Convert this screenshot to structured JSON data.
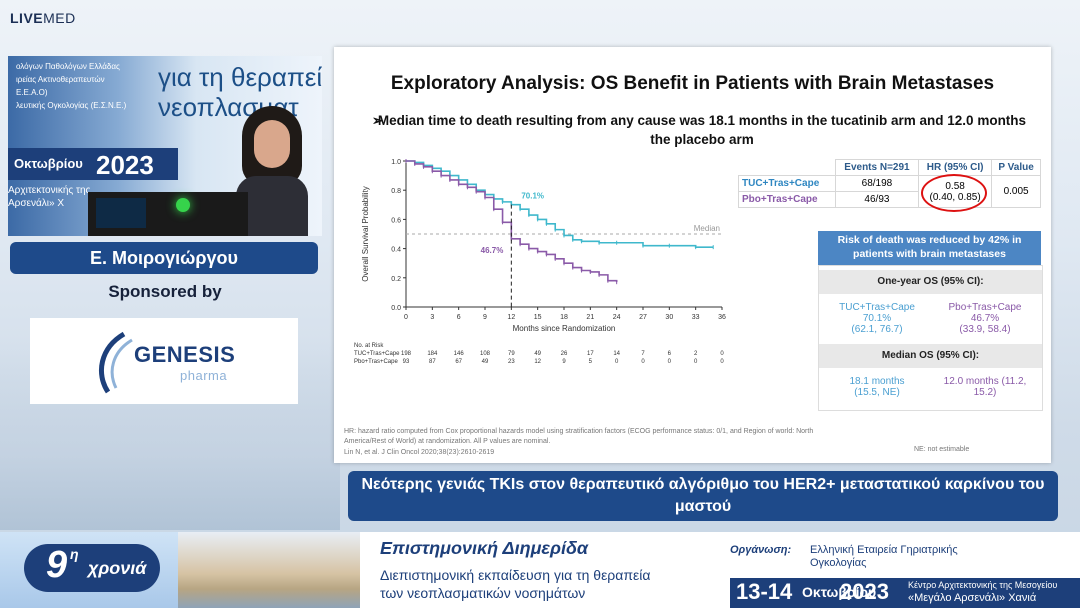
{
  "brand": {
    "live": "LIVE",
    "med": "MED"
  },
  "video": {
    "banner_line1": "για τη θεραπεία",
    "banner_line2": "νεοπλασματ",
    "org_lines": [
      "ολόγων Παθολόγων Ελλάδας",
      "ιρείας Ακτινοθεραπευτών",
      "Ε.Ε.Α.Ο)",
      "λευτικής Ογκολογίας (Ε.Σ.Ν.Ε.)"
    ],
    "date_month": "Οκτωβρίου",
    "date_year": "2023",
    "venue_line1": "Αρχιτεκτονικής της",
    "venue_line2": "Αρσενάλι» Χ"
  },
  "speaker": {
    "name": "Ε. Μοιρογιώργου"
  },
  "sponsor": {
    "label": "Sponsored by",
    "company": "GENESIS",
    "company_sub": "pharma"
  },
  "slide": {
    "title": "Exploratory Analysis: OS Benefit in Patients with Brain Metastases",
    "bullet_arrow": "➢",
    "bullet": "Median time to death resulting from any cause was 18.1 months in the tucatinib arm and 12.0 months the placebo arm",
    "table": {
      "headers": [
        "",
        "Events N=291",
        "HR (95% CI)",
        "P Value"
      ],
      "rows": [
        {
          "arm": "TUC+Tras+Cape",
          "events": "68/198",
          "hr": "0.58",
          "ci": "(0.40, 0.85)",
          "p": "0.005"
        },
        {
          "arm": "Pbo+Tras+Cape",
          "events": "46/93",
          "hr": "",
          "ci": "",
          "p": ""
        }
      ]
    },
    "risk": {
      "header": "Risk of death was reduced by 42% in patients with brain metastases",
      "one_year_label": "One-year OS (95% CI):",
      "tuc_arm": "TUC+Tras+Cape",
      "tuc_os": "70.1%",
      "tuc_ci": "(62.1, 76.7)",
      "pbo_arm": "Pbo+Tras+Cape",
      "pbo_os": "46.7%",
      "pbo_ci": "(33.9, 58.4)",
      "median_label": "Median OS (95% CI):",
      "tuc_median": "18.1 months",
      "tuc_median_ci": "(15.5, NE)",
      "pbo_median": "12.0 months (11.2,",
      "pbo_median_ci": "15.2)"
    },
    "footnote": "HR: hazard ratio computed from Cox proportional hazards model using stratification factors (ECOG performance status: 0/1, and Region of world: North America/Rest of World) at randomization. All P values are nominal.",
    "reference": "Lin N, et al. J Clin Oncol 2020;38(23):2610-2619",
    "ne_note": "NE: not estimable"
  },
  "chart_data": {
    "type": "line",
    "xlabel": "Months since Randomization",
    "ylabel": "Overall Survival Probability",
    "xlim": [
      0,
      36
    ],
    "ylim": [
      0,
      1.0
    ],
    "xticks": [
      0,
      3,
      6,
      9,
      12,
      15,
      18,
      21,
      24,
      27,
      30,
      33,
      36
    ],
    "yticks": [
      0,
      0.2,
      0.4,
      0.6,
      0.8,
      1.0
    ],
    "median_label": "Median",
    "annotations": [
      {
        "text": "70.1%",
        "x": 12,
        "y": 0.701,
        "color": "#3fb8cc"
      },
      {
        "text": "46.7%",
        "x": 12,
        "y": 0.467,
        "color": "#8a5aa8"
      }
    ],
    "series": [
      {
        "name": "TUC+Tras+Cape",
        "color": "#3fb8cc",
        "x": [
          0,
          1,
          2,
          3,
          4,
          5,
          6,
          7,
          8,
          9,
          10,
          11,
          12,
          13,
          14,
          15,
          16,
          17,
          18,
          19,
          20,
          22,
          24,
          27,
          30,
          33,
          35
        ],
        "y": [
          1.0,
          0.99,
          0.97,
          0.95,
          0.93,
          0.9,
          0.87,
          0.84,
          0.8,
          0.77,
          0.74,
          0.72,
          0.701,
          0.67,
          0.63,
          0.6,
          0.57,
          0.53,
          0.49,
          0.46,
          0.45,
          0.44,
          0.44,
          0.42,
          0.42,
          0.41,
          0.41
        ]
      },
      {
        "name": "Pbo+Tras+Cape",
        "color": "#8a5aa8",
        "x": [
          0,
          1,
          2,
          3,
          4,
          5,
          6,
          7,
          8,
          9,
          10,
          11,
          12,
          13,
          14,
          15,
          16,
          17,
          18,
          19,
          20,
          21,
          22,
          23,
          24
        ],
        "y": [
          1.0,
          0.98,
          0.96,
          0.93,
          0.9,
          0.87,
          0.84,
          0.82,
          0.79,
          0.75,
          0.67,
          0.58,
          0.467,
          0.43,
          0.4,
          0.38,
          0.36,
          0.33,
          0.3,
          0.27,
          0.25,
          0.24,
          0.22,
          0.18,
          0.17
        ]
      }
    ],
    "risk_table": {
      "label": "No. at Risk",
      "rows": [
        {
          "name": "TUC+Tras+Cape",
          "values": [
            "198",
            "184",
            "146",
            "108",
            "79",
            "49",
            "26",
            "17",
            "14",
            "7",
            "6",
            "2",
            "0"
          ]
        },
        {
          "name": "Pbo+Tras+Cape",
          "values": [
            "93",
            "87",
            "67",
            "49",
            "23",
            "12",
            "9",
            "5",
            "0",
            "0",
            "0",
            "0",
            "0"
          ]
        }
      ]
    }
  },
  "caption": "Νεότερης γενιάς TKIs στον θεραπευτικό αλγόριθμο του HER2+ μεταστατικού καρκίνου του μαστού",
  "footer": {
    "ninth_num": "9",
    "ninth_sup": "η",
    "ninth_word": "χρονιά",
    "event_title": "Επιστημονική Διημερίδα",
    "event_sub1": "Διεπιστημονική εκπαίδευση για τη θεραπεία",
    "event_sub2": "των νεοπλασματικών νοσημάτων",
    "org_label": "Οργάνωση:",
    "org_name": "Ελληνική Εταιρεία Γηριατρικής Ογκολογίας",
    "dates": "13-14",
    "month": "Οκτωβρίου",
    "year": "2023",
    "venue1": "Κέντρο Αρχιτεκτονικής της Μεσογείου",
    "venue2": "«Μεγάλο Αρσενάλι» Χανιά"
  }
}
